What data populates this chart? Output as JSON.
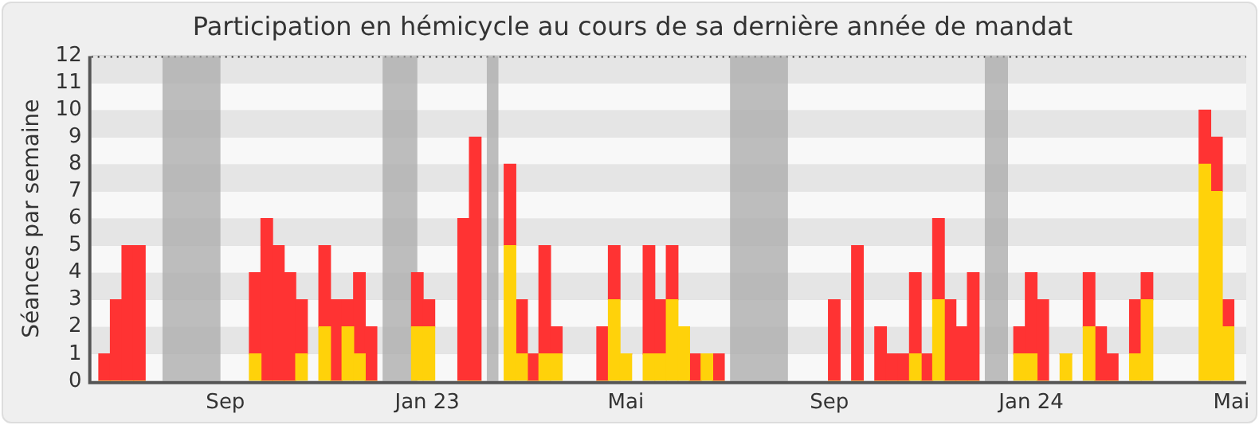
{
  "chart_data": {
    "type": "bar",
    "title": "Participation en hémicycle au cours de sa dernière année de mandat",
    "ylabel": "Séances par semaine",
    "stacked": true,
    "grid": "y",
    "legend": false,
    "x": [
      "2022-06-20",
      "2022-06-27",
      "2022-07-04",
      "2022-07-11",
      "2022-09-19",
      "2022-09-26",
      "2022-10-03",
      "2022-10-10",
      "2022-10-17",
      "2022-10-31",
      "2022-11-07",
      "2022-11-14",
      "2022-11-21",
      "2022-11-28",
      "2022-12-26",
      "2023-01-02",
      "2023-01-23",
      "2023-01-30",
      "2023-02-20",
      "2023-02-27",
      "2023-03-06",
      "2023-03-13",
      "2023-03-20",
      "2023-04-17",
      "2023-04-24",
      "2023-05-01",
      "2023-05-15",
      "2023-05-22",
      "2023-05-29",
      "2023-06-05",
      "2023-06-12",
      "2023-06-19",
      "2023-06-26",
      "2023-09-04",
      "2023-09-18",
      "2023-10-02",
      "2023-10-09",
      "2023-10-16",
      "2023-10-23",
      "2023-10-30",
      "2023-11-06",
      "2023-11-13",
      "2023-11-20",
      "2023-11-27",
      "2023-12-25",
      "2024-01-01",
      "2024-01-08",
      "2024-01-22",
      "2024-02-05",
      "2024-02-12",
      "2024-02-19",
      "2024-03-04",
      "2024-03-11",
      "2024-04-15",
      "2024-04-22",
      "2024-04-29"
    ],
    "series": [
      {
        "color": "#ffd20a",
        "values": [
          0,
          0,
          0,
          0,
          1,
          0,
          0,
          0,
          1,
          2,
          0,
          2,
          1,
          0,
          2,
          2,
          0,
          0,
          5,
          1,
          0,
          1,
          1,
          0,
          3,
          1,
          1,
          1,
          3,
          2,
          0,
          1,
          0,
          0,
          0,
          0,
          0,
          0,
          1,
          0,
          3,
          0,
          0,
          0,
          1,
          1,
          0,
          1,
          2,
          0,
          0,
          1,
          3,
          8,
          7,
          2
        ]
      },
      {
        "color": "#ff3333",
        "values": [
          1,
          3,
          5,
          5,
          3,
          6,
          5,
          4,
          2,
          3,
          3,
          1,
          3,
          2,
          2,
          1,
          6,
          9,
          3,
          2,
          1,
          4,
          1,
          2,
          2,
          0,
          4,
          2,
          2,
          0,
          1,
          0,
          1,
          3,
          5,
          2,
          1,
          1,
          3,
          1,
          3,
          3,
          2,
          4,
          1,
          3,
          3,
          0,
          2,
          2,
          1,
          2,
          1,
          2,
          2,
          1
        ]
      }
    ],
    "xlim": [
      "2022-06-12",
      "2024-05-10"
    ],
    "xticks": [
      {
        "value": "2022-09-01",
        "label": "Sep"
      },
      {
        "value": "2023-01-01",
        "label": "Jan 23"
      },
      {
        "value": "2023-05-01",
        "label": "Mai"
      },
      {
        "value": "2023-09-01",
        "label": "Sep"
      },
      {
        "value": "2024-01-01",
        "label": "Jan 24"
      },
      {
        "value": "2024-05-01",
        "label": "Mai"
      }
    ],
    "ylim": [
      0,
      12
    ],
    "yticks": [
      0,
      1,
      2,
      3,
      4,
      5,
      6,
      7,
      8,
      9,
      10,
      11,
      12
    ],
    "bands": [
      {
        "axis": "x",
        "from": "2022-07-25",
        "to": "2022-08-29",
        "color": "#aaaaaa"
      },
      {
        "axis": "x",
        "from": "2022-12-05",
        "to": "2022-12-26",
        "color": "#aaaaaa"
      },
      {
        "axis": "x",
        "from": "2023-02-06",
        "to": "2023-02-13",
        "color": "#aaaaaa"
      },
      {
        "axis": "x",
        "from": "2023-07-03",
        "to": "2023-08-07",
        "color": "#aaaaaa"
      },
      {
        "axis": "x",
        "from": "2023-12-04",
        "to": "2023-12-18",
        "color": "#aaaaaa"
      }
    ]
  }
}
